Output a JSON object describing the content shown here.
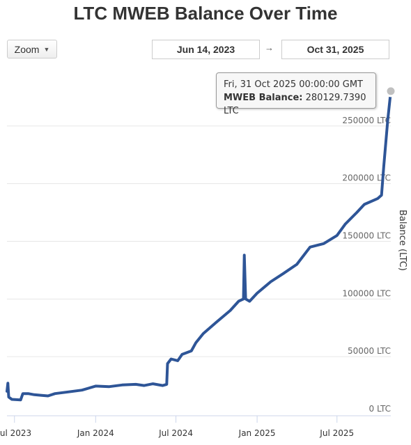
{
  "title": "LTC MWEB Balance Over Time",
  "controls": {
    "zoom_label": "Zoom",
    "date_from": "Jun 14, 2023",
    "date_to": "Oct 31, 2025",
    "range_arrow": "→"
  },
  "tooltip": {
    "date": "Fri, 31 Oct 2025 00:00:00 GMT",
    "series_label": "MWEB Balance:",
    "value": "280129.7390 LTC"
  },
  "colors": {
    "line": "#2e5597",
    "grid": "#e6e6e6",
    "axis_text": "#666666",
    "marker": "#c0c0c0"
  },
  "chart_data": {
    "type": "line",
    "title": "LTC MWEB Balance Over Time",
    "ylabel": "Balance (LTC)",
    "xlabel": "",
    "ylim": [
      0,
      300000
    ],
    "y_ticks": [
      {
        "value": 0,
        "label": "0 LTC"
      },
      {
        "value": 50000,
        "label": "50000 LTC"
      },
      {
        "value": 100000,
        "label": "100000 LTC"
      },
      {
        "value": 150000,
        "label": "150000 LTC"
      },
      {
        "value": 200000,
        "label": "200000 LTC"
      },
      {
        "value": 250000,
        "label": "250000 LTC"
      }
    ],
    "x_range": [
      "2023-06-14",
      "2025-10-31"
    ],
    "x_ticks": [
      {
        "date": "2023-07-01",
        "label": "Jul 2023"
      },
      {
        "date": "2024-01-01",
        "label": "Jan 2024"
      },
      {
        "date": "2024-07-01",
        "label": "Jul 2024"
      },
      {
        "date": "2025-01-01",
        "label": "Jan 2025"
      },
      {
        "date": "2025-07-01",
        "label": "Jul 2025"
      }
    ],
    "grid": true,
    "series": [
      {
        "name": "MWEB Balance",
        "points": [
          [
            "2023-06-14",
            20000
          ],
          [
            "2023-06-16",
            27000
          ],
          [
            "2023-06-18",
            15000
          ],
          [
            "2023-06-25",
            13000
          ],
          [
            "2023-07-15",
            12500
          ],
          [
            "2023-07-20",
            18000
          ],
          [
            "2023-08-01",
            18000
          ],
          [
            "2023-08-15",
            17000
          ],
          [
            "2023-09-01",
            16500
          ],
          [
            "2023-09-15",
            16000
          ],
          [
            "2023-10-01",
            18000
          ],
          [
            "2023-11-01",
            19500
          ],
          [
            "2023-12-01",
            21000
          ],
          [
            "2024-01-01",
            24500
          ],
          [
            "2024-02-01",
            24000
          ],
          [
            "2024-03-01",
            25500
          ],
          [
            "2024-04-01",
            26000
          ],
          [
            "2024-04-20",
            25000
          ],
          [
            "2024-05-10",
            26500
          ],
          [
            "2024-06-01",
            25000
          ],
          [
            "2024-06-10",
            26000
          ],
          [
            "2024-06-12",
            44000
          ],
          [
            "2024-06-20",
            48000
          ],
          [
            "2024-07-05",
            46500
          ],
          [
            "2024-07-15",
            52000
          ],
          [
            "2024-08-05",
            55000
          ],
          [
            "2024-08-15",
            62000
          ],
          [
            "2024-09-01",
            70000
          ],
          [
            "2024-10-01",
            80000
          ],
          [
            "2024-11-01",
            90000
          ],
          [
            "2024-11-20",
            98000
          ],
          [
            "2024-12-01",
            100000
          ],
          [
            "2024-12-03",
            138000
          ],
          [
            "2024-12-06",
            100000
          ],
          [
            "2024-12-15",
            98000
          ],
          [
            "2025-01-01",
            105000
          ],
          [
            "2025-02-01",
            115000
          ],
          [
            "2025-03-01",
            122000
          ],
          [
            "2025-04-01",
            130000
          ],
          [
            "2025-05-01",
            145000
          ],
          [
            "2025-06-01",
            148000
          ],
          [
            "2025-07-01",
            155000
          ],
          [
            "2025-07-20",
            165000
          ],
          [
            "2025-08-15",
            175000
          ],
          [
            "2025-09-01",
            182000
          ],
          [
            "2025-10-01",
            187000
          ],
          [
            "2025-10-10",
            190000
          ],
          [
            "2025-10-15",
            215000
          ],
          [
            "2025-10-24",
            255000
          ],
          [
            "2025-10-31",
            280129.739
          ]
        ]
      }
    ]
  }
}
